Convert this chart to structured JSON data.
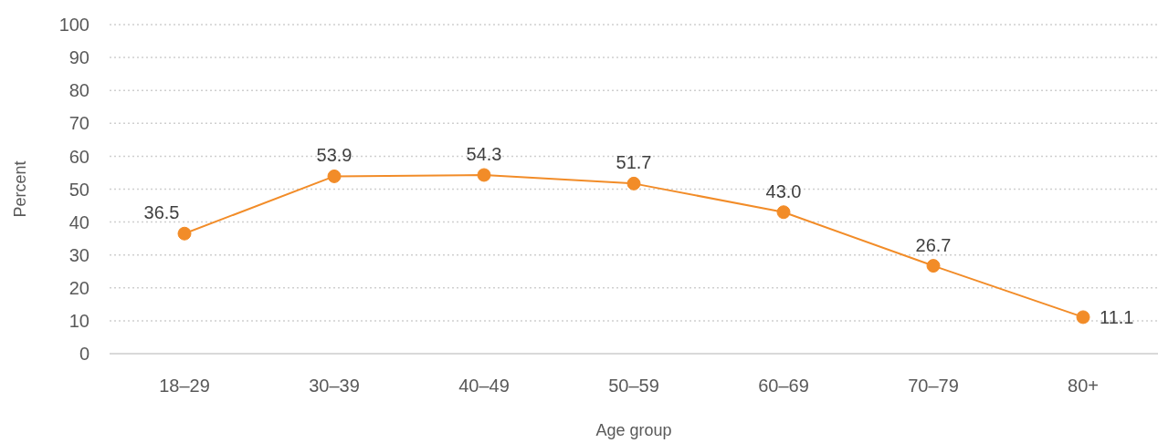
{
  "chart_data": {
    "type": "line",
    "xlabel": "Age group",
    "ylabel": "Percent",
    "categories": [
      "18–29",
      "30–39",
      "40–49",
      "50–59",
      "60–69",
      "70–79",
      "80+"
    ],
    "series": [
      {
        "color": "#f28c28",
        "values": [
          36.5,
          53.9,
          54.3,
          51.7,
          43.0,
          26.7,
          11.1
        ],
        "value_labels": [
          "36.5",
          "53.9",
          "54.3",
          "51.7",
          "43.0",
          "26.7",
          "11.1"
        ]
      }
    ],
    "ylim": [
      0,
      100
    ],
    "yticks": [
      0,
      10,
      20,
      30,
      40,
      50,
      60,
      70,
      80,
      90,
      100
    ],
    "grid": "y",
    "marker": "circle",
    "line_style": "solid"
  }
}
